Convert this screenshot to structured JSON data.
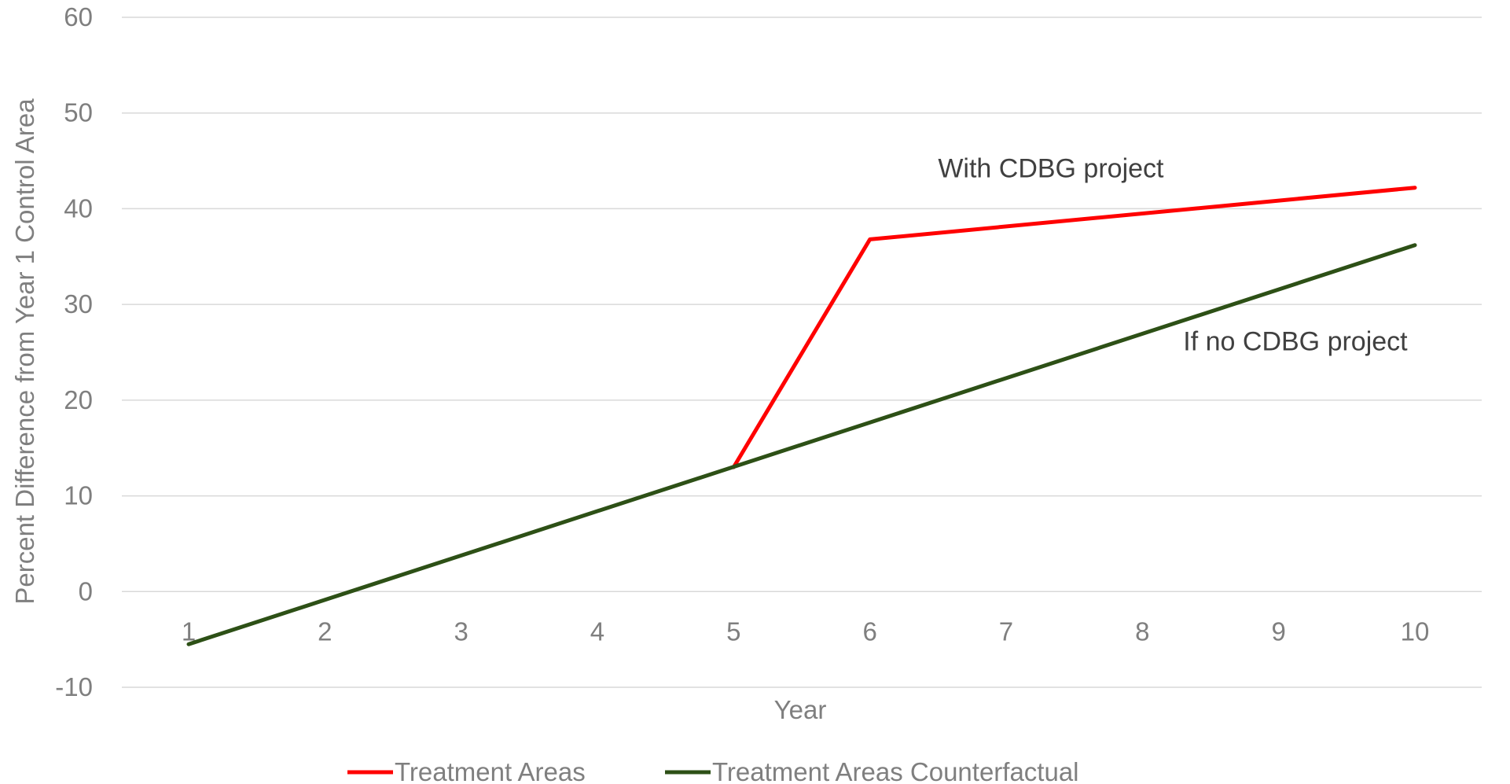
{
  "chart_data": {
    "type": "line",
    "title": "",
    "xlabel": "Year",
    "ylabel": "Percent Difference from Year 1 Control Area",
    "categories": [
      "1",
      "2",
      "3",
      "4",
      "5",
      "6",
      "7",
      "8",
      "9",
      "10"
    ],
    "y_ticks": [
      "60",
      "50",
      "40",
      "30",
      "20",
      "10",
      "0",
      "-10"
    ],
    "ylim": [
      -10,
      60
    ],
    "grid": true,
    "legend_position": "bottom",
    "series": [
      {
        "name": "Treatment Areas",
        "color": "#ff0000",
        "points": [
          {
            "x": 5,
            "y": 13
          },
          {
            "x": 6,
            "y": 36.8
          },
          {
            "x": 10,
            "y": 42.2
          }
        ]
      },
      {
        "name": "Treatment Areas Counterfactual",
        "color": "#2d5016",
        "points": [
          {
            "x": 1,
            "y": -5.5
          },
          {
            "x": 10,
            "y": 36.2
          }
        ]
      }
    ],
    "annotations": [
      {
        "text": "With CDBG project",
        "x": 6.5,
        "y": 43.3
      },
      {
        "text": "If no CDBG project",
        "x": 8.3,
        "y": 25.2
      }
    ]
  }
}
